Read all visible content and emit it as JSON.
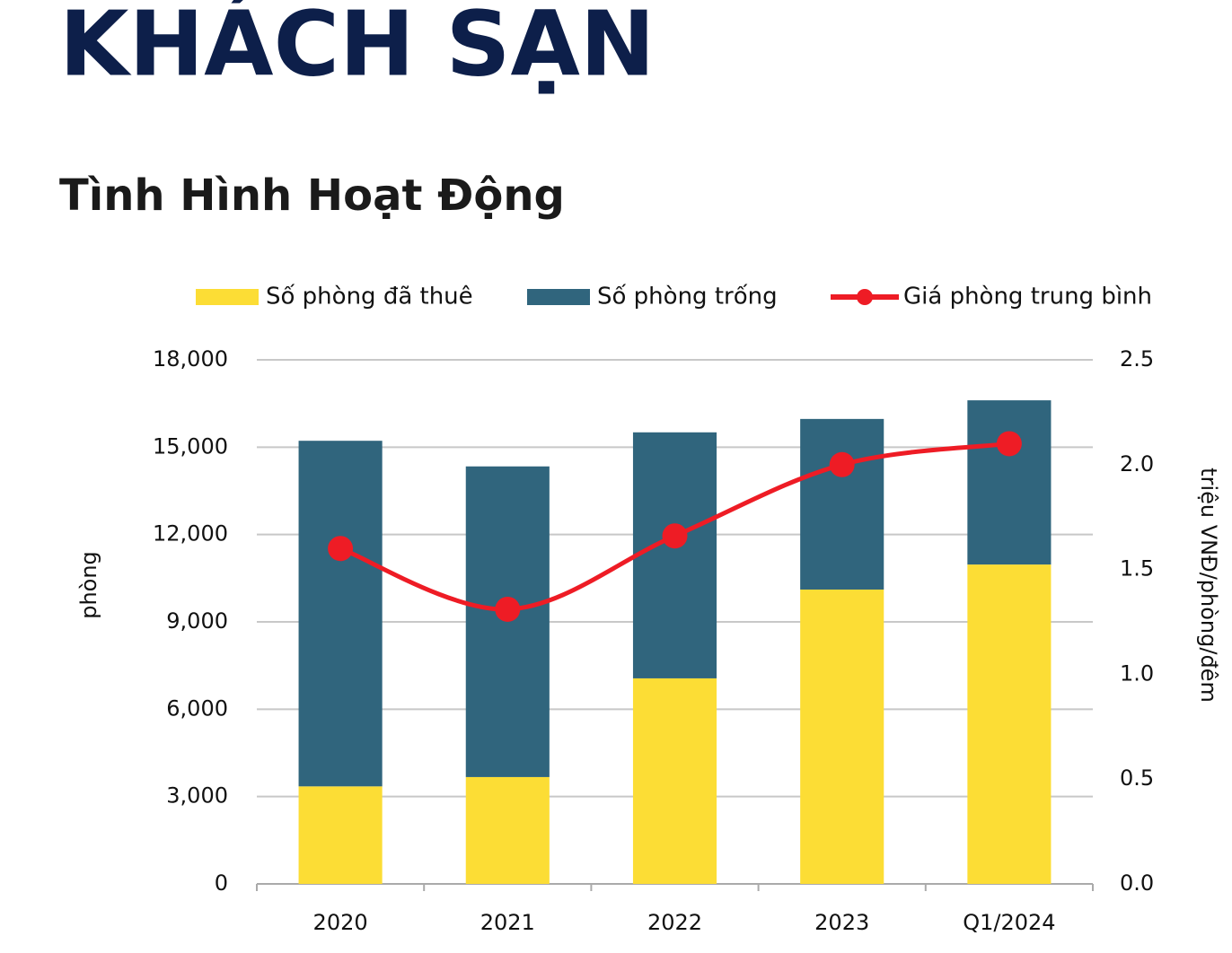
{
  "chart_data": {
    "type": "bar",
    "stacked": true,
    "title": "KHÁCH SẠN",
    "subtitle": "Tình Hình Hoạt Động",
    "categories": [
      "2020",
      "2021",
      "2022",
      "2023",
      "Q1/2024"
    ],
    "series": [
      {
        "name": "Số phòng đã thuê",
        "color": "#fcdd35",
        "values": [
          3350,
          3670,
          7060,
          10110,
          10970
        ]
      },
      {
        "name": "Số phòng trống",
        "color": "#30657d",
        "values": [
          11870,
          10670,
          8450,
          5860,
          5640
        ]
      },
      {
        "name": "Giá phòng trung bình",
        "type": "line",
        "axis": "y2",
        "color": "#ee1c25",
        "values": [
          1.6,
          1.31,
          1.66,
          2.0,
          2.1
        ]
      }
    ],
    "ylabel": "phòng",
    "y2label": "triệu VNĐ/phòng/đêm",
    "ylim": [
      0,
      18000
    ],
    "yticks": [
      0,
      {
        "value": 3000,
        "label": "3,000"
      },
      {
        "value": 6000,
        "label": "6,000"
      },
      {
        "value": 9000,
        "label": "9,000"
      },
      {
        "value": 12000,
        "label": "12,000"
      },
      {
        "value": 15000,
        "label": "15,000"
      },
      {
        "value": 18000,
        "label": "18,000"
      }
    ],
    "y2lim": [
      0,
      2.5
    ],
    "y2ticks": [
      {
        "value": 0,
        "label": "0.0"
      },
      0.5,
      {
        "value": 1,
        "label": "1.0"
      },
      1.5,
      {
        "value": 2,
        "label": "2.0"
      },
      2.5
    ],
    "grid": true
  }
}
